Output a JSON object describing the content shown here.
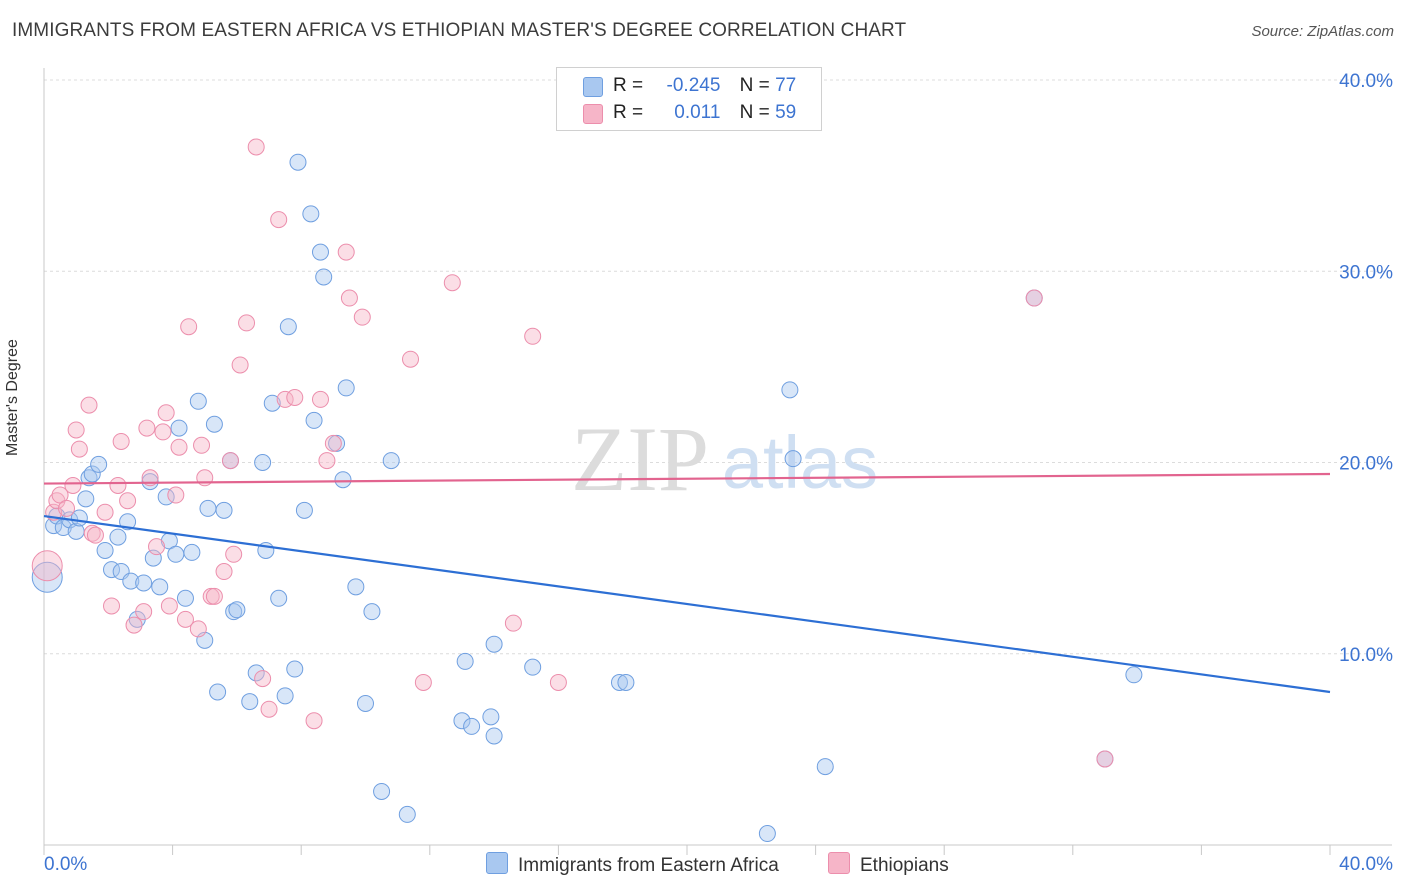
{
  "title": "IMMIGRANTS FROM EASTERN AFRICA VS ETHIOPIAN MASTER'S DEGREE CORRELATION CHART",
  "source": "Source: ZipAtlas.com",
  "watermark": {
    "zip": "ZIP",
    "atlas": "atlas"
  },
  "legend": {
    "rows": [
      {
        "r_label": "R =",
        "r_value": "-0.245",
        "n_label": "N =",
        "n_value": "77",
        "color": "#a9c8f0"
      },
      {
        "r_label": "R =",
        "r_value": "0.011",
        "n_label": "N =",
        "n_value": "59",
        "color": "#f6b5c8"
      }
    ]
  },
  "bottom_legend": {
    "series1": "Immigrants from Eastern Africa",
    "series2": "Ethiopians"
  },
  "colors": {
    "blue_fill": "#a9c8f0",
    "blue_stroke": "#6f9fe0",
    "blue_line": "#2d6fd4",
    "pink_fill": "#f6b5c8",
    "pink_stroke": "#ec8eac",
    "pink_line": "#e2648f",
    "tick_label": "#3d74d1"
  },
  "chart_data": {
    "type": "scatter",
    "title": "IMMIGRANTS FROM EASTERN AFRICA VS ETHIOPIAN MASTER'S DEGREE CORRELATION CHART",
    "xlabel": "",
    "ylabel": "Master's Degree",
    "xlim": [
      0,
      40
    ],
    "ylim": [
      0,
      40
    ],
    "x_tick_labels": [
      "0.0%",
      "40.0%"
    ],
    "y_tick_labels": [
      "10.0%",
      "20.0%",
      "30.0%",
      "40.0%"
    ],
    "y_ticks": [
      10,
      20,
      30,
      40
    ],
    "grid": true,
    "legend_position": "top-center",
    "series": [
      {
        "name": "Immigrants from Eastern Africa",
        "r": -0.245,
        "n": 77,
        "trend": {
          "x": [
            0,
            40
          ],
          "y": [
            17.2,
            8.0
          ]
        },
        "points": [
          [
            0.1,
            14.0
          ],
          [
            0.3,
            16.7
          ],
          [
            0.4,
            17.2
          ],
          [
            0.6,
            16.6
          ],
          [
            0.8,
            17.0
          ],
          [
            1.0,
            16.4
          ],
          [
            1.1,
            17.1
          ],
          [
            1.3,
            18.1
          ],
          [
            1.4,
            19.2
          ],
          [
            1.5,
            19.4
          ],
          [
            1.7,
            19.9
          ],
          [
            1.9,
            15.4
          ],
          [
            2.1,
            14.4
          ],
          [
            2.3,
            16.1
          ],
          [
            2.4,
            14.3
          ],
          [
            2.6,
            16.9
          ],
          [
            2.7,
            13.8
          ],
          [
            2.9,
            11.8
          ],
          [
            3.1,
            13.7
          ],
          [
            3.3,
            19.0
          ],
          [
            3.4,
            15.0
          ],
          [
            3.6,
            13.5
          ],
          [
            3.8,
            18.2
          ],
          [
            3.9,
            15.9
          ],
          [
            4.1,
            15.2
          ],
          [
            4.2,
            21.8
          ],
          [
            4.4,
            12.9
          ],
          [
            4.6,
            15.3
          ],
          [
            4.8,
            23.2
          ],
          [
            5.0,
            10.7
          ],
          [
            5.1,
            17.6
          ],
          [
            5.3,
            22.0
          ],
          [
            5.4,
            8.0
          ],
          [
            5.6,
            17.5
          ],
          [
            5.8,
            20.1
          ],
          [
            5.9,
            12.2
          ],
          [
            6.0,
            12.3
          ],
          [
            6.4,
            7.5
          ],
          [
            6.6,
            9.0
          ],
          [
            6.8,
            20.0
          ],
          [
            6.9,
            15.4
          ],
          [
            7.1,
            23.1
          ],
          [
            7.3,
            12.9
          ],
          [
            7.5,
            7.8
          ],
          [
            7.6,
            27.1
          ],
          [
            7.8,
            9.2
          ],
          [
            7.9,
            35.7
          ],
          [
            8.1,
            17.5
          ],
          [
            8.3,
            33.0
          ],
          [
            8.4,
            22.2
          ],
          [
            8.6,
            31.0
          ],
          [
            8.7,
            29.7
          ],
          [
            9.1,
            21.0
          ],
          [
            9.3,
            19.1
          ],
          [
            9.4,
            23.9
          ],
          [
            9.7,
            13.5
          ],
          [
            10.0,
            7.4
          ],
          [
            10.2,
            12.2
          ],
          [
            10.5,
            2.8
          ],
          [
            10.8,
            20.1
          ],
          [
            11.3,
            1.6
          ],
          [
            13.0,
            6.5
          ],
          [
            13.1,
            9.6
          ],
          [
            13.3,
            6.2
          ],
          [
            13.9,
            6.7
          ],
          [
            14.0,
            5.7
          ],
          [
            14.0,
            10.5
          ],
          [
            15.2,
            9.3
          ],
          [
            17.9,
            8.5
          ],
          [
            18.1,
            8.5
          ],
          [
            22.5,
            0.6
          ],
          [
            23.2,
            23.8
          ],
          [
            23.3,
            20.2
          ],
          [
            24.3,
            4.1
          ],
          [
            30.8,
            28.6
          ],
          [
            33.9,
            8.9
          ],
          [
            33.0,
            4.5
          ]
        ]
      },
      {
        "name": "Ethiopians",
        "r": 0.011,
        "n": 59,
        "trend": {
          "x": [
            0,
            40
          ],
          "y": [
            18.9,
            19.4
          ]
        },
        "points": [
          [
            0.1,
            14.6
          ],
          [
            0.3,
            17.4
          ],
          [
            0.4,
            18.0
          ],
          [
            0.5,
            18.3
          ],
          [
            0.7,
            17.6
          ],
          [
            0.9,
            18.8
          ],
          [
            1.0,
            21.7
          ],
          [
            1.1,
            20.7
          ],
          [
            1.4,
            23.0
          ],
          [
            1.5,
            16.3
          ],
          [
            1.6,
            16.2
          ],
          [
            1.9,
            17.4
          ],
          [
            2.1,
            12.5
          ],
          [
            2.3,
            18.8
          ],
          [
            2.4,
            21.1
          ],
          [
            2.6,
            18.0
          ],
          [
            2.8,
            11.5
          ],
          [
            3.1,
            12.2
          ],
          [
            3.2,
            21.8
          ],
          [
            3.3,
            19.2
          ],
          [
            3.5,
            15.6
          ],
          [
            3.7,
            21.6
          ],
          [
            3.8,
            22.6
          ],
          [
            3.9,
            12.5
          ],
          [
            4.1,
            18.3
          ],
          [
            4.2,
            20.8
          ],
          [
            4.4,
            11.8
          ],
          [
            4.5,
            27.1
          ],
          [
            4.8,
            11.3
          ],
          [
            4.9,
            20.9
          ],
          [
            5.0,
            19.2
          ],
          [
            5.2,
            13.0
          ],
          [
            5.3,
            13.0
          ],
          [
            5.6,
            14.3
          ],
          [
            5.8,
            20.1
          ],
          [
            5.9,
            15.2
          ],
          [
            6.1,
            25.1
          ],
          [
            6.3,
            27.3
          ],
          [
            6.6,
            36.5
          ],
          [
            6.8,
            8.7
          ],
          [
            7.0,
            7.1
          ],
          [
            7.3,
            32.7
          ],
          [
            7.5,
            23.3
          ],
          [
            7.8,
            23.4
          ],
          [
            8.4,
            6.5
          ],
          [
            8.6,
            23.3
          ],
          [
            8.8,
            20.1
          ],
          [
            9.0,
            21.0
          ],
          [
            9.4,
            31.0
          ],
          [
            9.5,
            28.6
          ],
          [
            9.9,
            27.6
          ],
          [
            11.4,
            25.4
          ],
          [
            11.8,
            8.5
          ],
          [
            12.7,
            29.4
          ],
          [
            14.6,
            11.6
          ],
          [
            15.2,
            26.6
          ],
          [
            16.0,
            8.5
          ],
          [
            30.8,
            28.6
          ],
          [
            33.0,
            4.5
          ]
        ]
      }
    ]
  }
}
